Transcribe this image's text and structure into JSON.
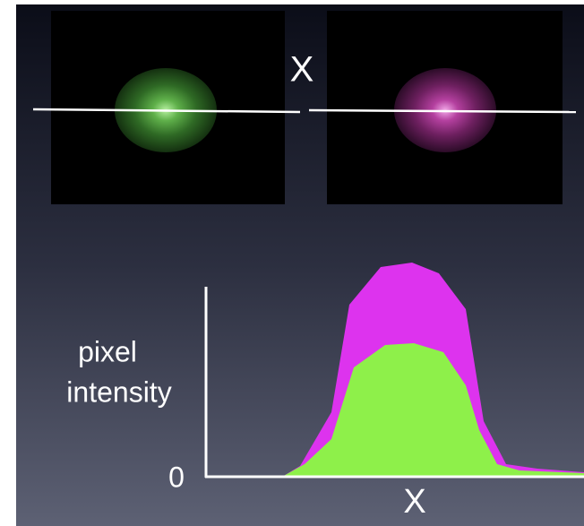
{
  "images": {
    "crosshair_label": "X"
  },
  "plot": {
    "y_label": [
      "pixel",
      "intensity"
    ],
    "origin_label": "0",
    "x_label": "X"
  }
}
